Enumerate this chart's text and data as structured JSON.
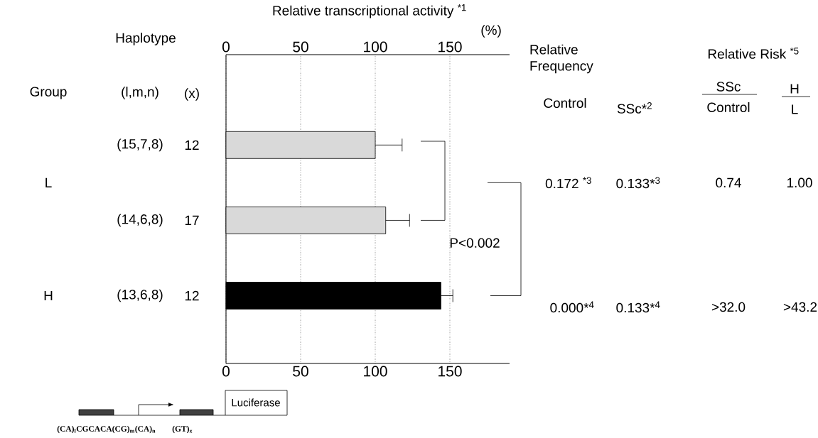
{
  "chart_data": {
    "type": "bar",
    "orientation": "horizontal",
    "title": "Relative transcriptional activity $^{*1}$",
    "xlabel": "(%)",
    "categories": [
      "(15,7,8)",
      "(14,6,8)",
      "(13,6,8)"
    ],
    "values": [
      100,
      107,
      144
    ],
    "colors": [
      "#d9d9d9",
      "#d9d9d9",
      "#000000"
    ],
    "errors": [
      [
        100,
        118
      ],
      [
        107,
        123
      ],
      [
        144,
        152
      ]
    ],
    "xlim": [
      0,
      190
    ],
    "xticks": [
      0,
      50,
      100,
      150
    ],
    "x2lim": [
      0,
      190
    ],
    "x2ticks": [
      0,
      50,
      100,
      150
    ],
    "grid": "x",
    "annotations": [
      "Group",
      "Haplotype",
      "(l,m,n)",
      "(x)",
      "12",
      "17",
      "12",
      "L",
      "H",
      "P<0.002",
      "Relative Frequency",
      "Control",
      "SSc*$^{2}$",
      "Relative Risk $^{*5}$",
      "SSc",
      "Control",
      "H",
      "L",
      "0.172 $^{*3}$",
      "0.133*$^{3}$",
      "0.74",
      "1.00",
      "0.000*$^{4}$",
      "0.133*$^{4}$",
      ">32.0",
      ">43.2",
      "Luciferase",
      "(CA)$_{l}$CGCACA(CG)$_{m}$(CA)$_{n}$",
      "(GT)$_{x}$"
    ]
  }
}
